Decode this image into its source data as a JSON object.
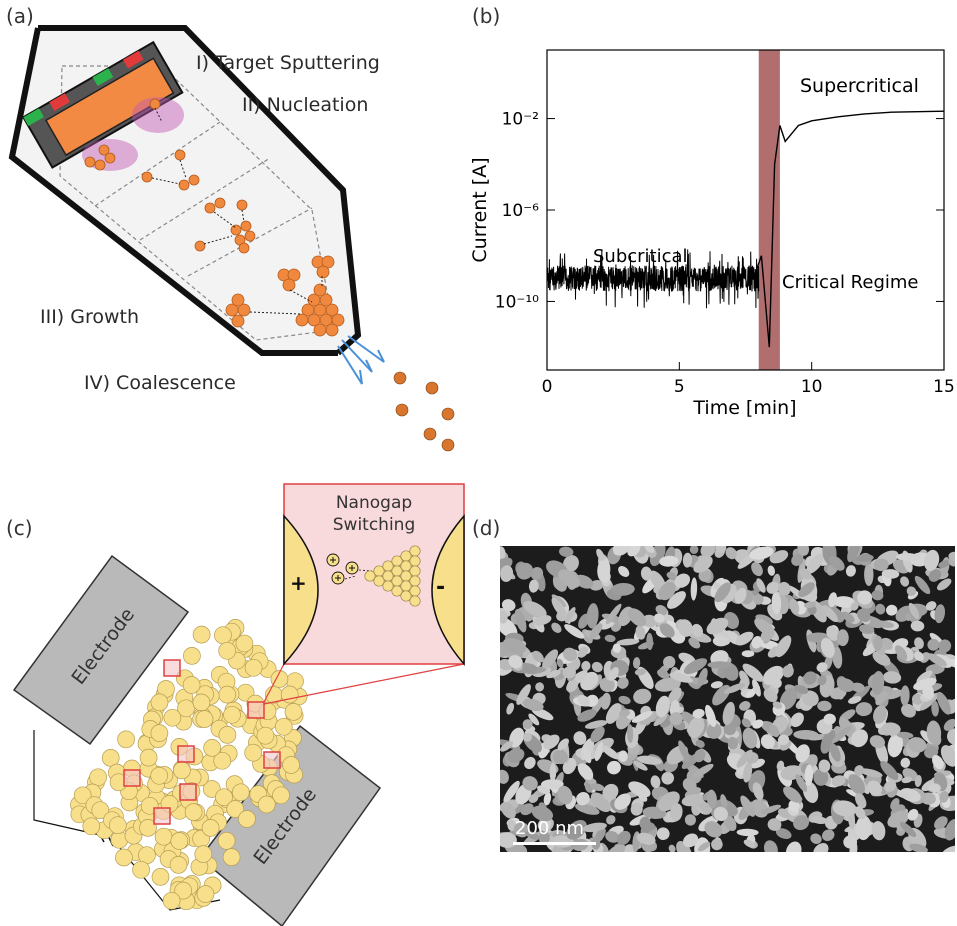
{
  "panel_a": {
    "label": "(a)",
    "stages": {
      "sputtering": "I) Target Sputtering",
      "nucleation": "II) Nucleation",
      "growth": "III) Growth",
      "coalescence": "IV) Coalescence"
    },
    "colors": {
      "cluster": "#f0883e",
      "plasma": "#c257b3",
      "wall": "#1a1a1a",
      "chamber": "#f2f2f2"
    }
  },
  "panel_b": {
    "label": "(b)",
    "annotations": {
      "subcritical": "Subcritical",
      "critical": "Critical Regime",
      "supercritical": "Supercritical"
    },
    "colors": {
      "line": "#000000",
      "critical_band": "#9e4a4a"
    }
  },
  "panel_c": {
    "label": "(c)",
    "inset_title_line1": "Nanogap",
    "inset_title_line2": "Switching",
    "plus": "+",
    "minus": "-",
    "electrode_top": "Electrode",
    "electrode_bottom": "Electrode",
    "colors": {
      "particle": "#f8df8c",
      "electrode": "#b9b9b9",
      "inset_bg": "#f8d9dc",
      "marker": "#e04040"
    }
  },
  "panel_d": {
    "label": "(d)",
    "scale_bar": "200 nm"
  },
  "chart_data": {
    "type": "line",
    "xlabel": "Time [min]",
    "ylabel": "Current [A]",
    "xlim": [
      0,
      15
    ],
    "ylim": [
      1e-13,
      10
    ],
    "yscale": "log",
    "xticks": [
      "0",
      "5",
      "10",
      "15"
    ],
    "yticks": [
      "10⁻¹⁰",
      "10⁻⁶",
      "10⁻²"
    ],
    "yticks_values": [
      1e-10,
      1e-06,
      0.01
    ],
    "regions": [
      {
        "name": "Subcritical",
        "x": [
          0,
          8.0
        ]
      },
      {
        "name": "Critical Regime",
        "x": [
          8.0,
          8.8
        ]
      },
      {
        "name": "Supercritical",
        "x": [
          8.8,
          15
        ]
      }
    ],
    "series": [
      {
        "x": [
          0,
          1,
          2,
          3,
          4,
          5,
          6,
          7,
          7.8,
          8.1,
          8.4,
          8.6,
          8.8,
          9.0,
          9.5,
          10,
          11,
          12,
          13,
          14,
          15
        ],
        "y": [
          1e-09,
          1e-09,
          1e-09,
          1e-09,
          1e-09,
          1e-09,
          1e-09,
          1e-09,
          1e-09,
          1e-08,
          1e-12,
          0.0001,
          0.005,
          0.001,
          0.005,
          0.008,
          0.012,
          0.016,
          0.019,
          0.02,
          0.021
        ]
      }
    ]
  }
}
